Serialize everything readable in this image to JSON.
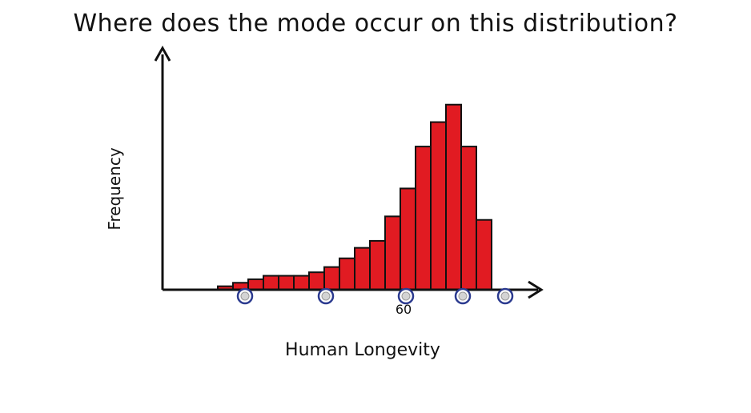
{
  "question": "Where does the mode occur on this distribution?",
  "chart_data": {
    "type": "bar",
    "title": "",
    "xlabel": "Human Longevity",
    "ylabel": "Frequency",
    "x_tick_label": "60",
    "values": [
      2,
      4,
      6,
      8,
      8,
      8,
      10,
      13,
      18,
      24,
      28,
      42,
      58,
      82,
      96,
      106,
      82,
      40
    ],
    "ylim": [
      0,
      110
    ],
    "answer_options": 5,
    "colors": {
      "bar": "#e11b22",
      "bar_stroke": "#111111",
      "axis": "#111111",
      "option_ring": "#2b3a8f",
      "option_fill": "#d4d4d4"
    }
  }
}
